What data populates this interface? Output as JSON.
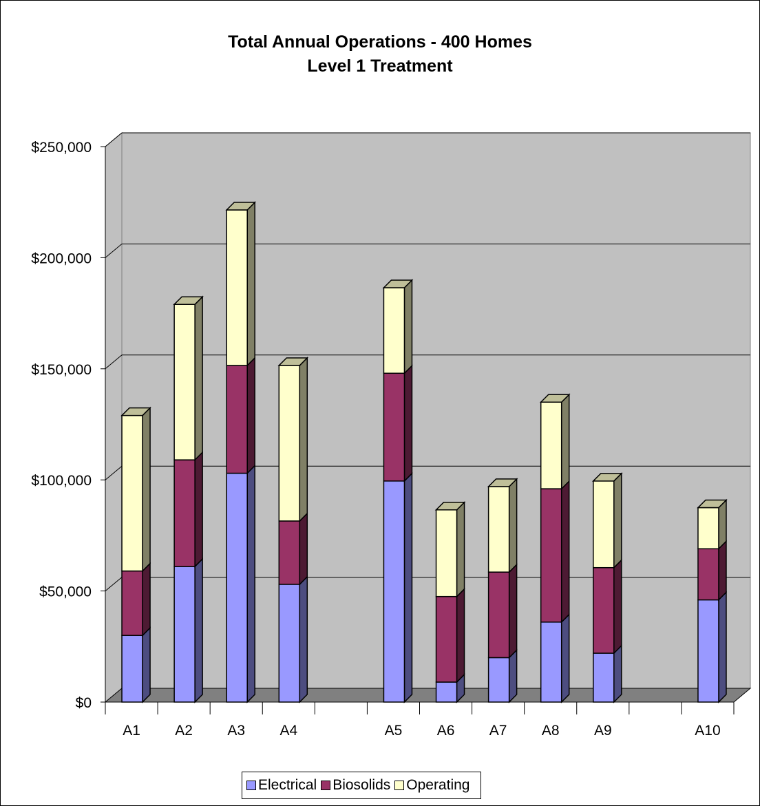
{
  "chart_data": {
    "type": "bar",
    "stacked": true,
    "title": [
      "Total Annual Operations - 400 Homes",
      "Level 1 Treatment"
    ],
    "xlabel": "",
    "ylabel": "",
    "ylim": [
      0,
      250000
    ],
    "y_ticks": [
      {
        "value": 0,
        "label": "$0"
      },
      {
        "value": 50000,
        "label": "$50,000"
      },
      {
        "value": 100000,
        "label": "$100,000"
      },
      {
        "value": 150000,
        "label": "$150,000"
      },
      {
        "value": 200000,
        "label": "$200,000"
      },
      {
        "value": 250000,
        "label": "$250,000"
      }
    ],
    "categories": [
      "A1",
      "A2",
      "A3",
      "A4",
      "",
      "A5",
      "A6",
      "A7",
      "A8",
      "A9",
      "",
      "A10"
    ],
    "series": [
      {
        "name": "Electrical",
        "color": "#9999ff",
        "values": [
          30000,
          61000,
          103000,
          53000,
          null,
          99500,
          9000,
          20000,
          36000,
          22000,
          null,
          46000
        ]
      },
      {
        "name": "Biosolids",
        "color": "#993366",
        "values": [
          29000,
          48000,
          48500,
          28500,
          null,
          48500,
          38500,
          38500,
          60000,
          38500,
          null,
          23000
        ]
      },
      {
        "name": "Operating",
        "color": "#ffffcc",
        "values": [
          70000,
          70000,
          70000,
          70000,
          null,
          38500,
          39000,
          38500,
          39000,
          39000,
          null,
          18500
        ]
      }
    ],
    "grid": true,
    "legend_position": "bottom",
    "plot_area_color": "#c0c0c0",
    "floor_color": "#808080"
  },
  "legend": {
    "items": [
      {
        "label": "Electrical",
        "color": "#9999ff"
      },
      {
        "label": "Biosolids",
        "color": "#993366"
      },
      {
        "label": "Operating",
        "color": "#ffffcc"
      }
    ]
  }
}
